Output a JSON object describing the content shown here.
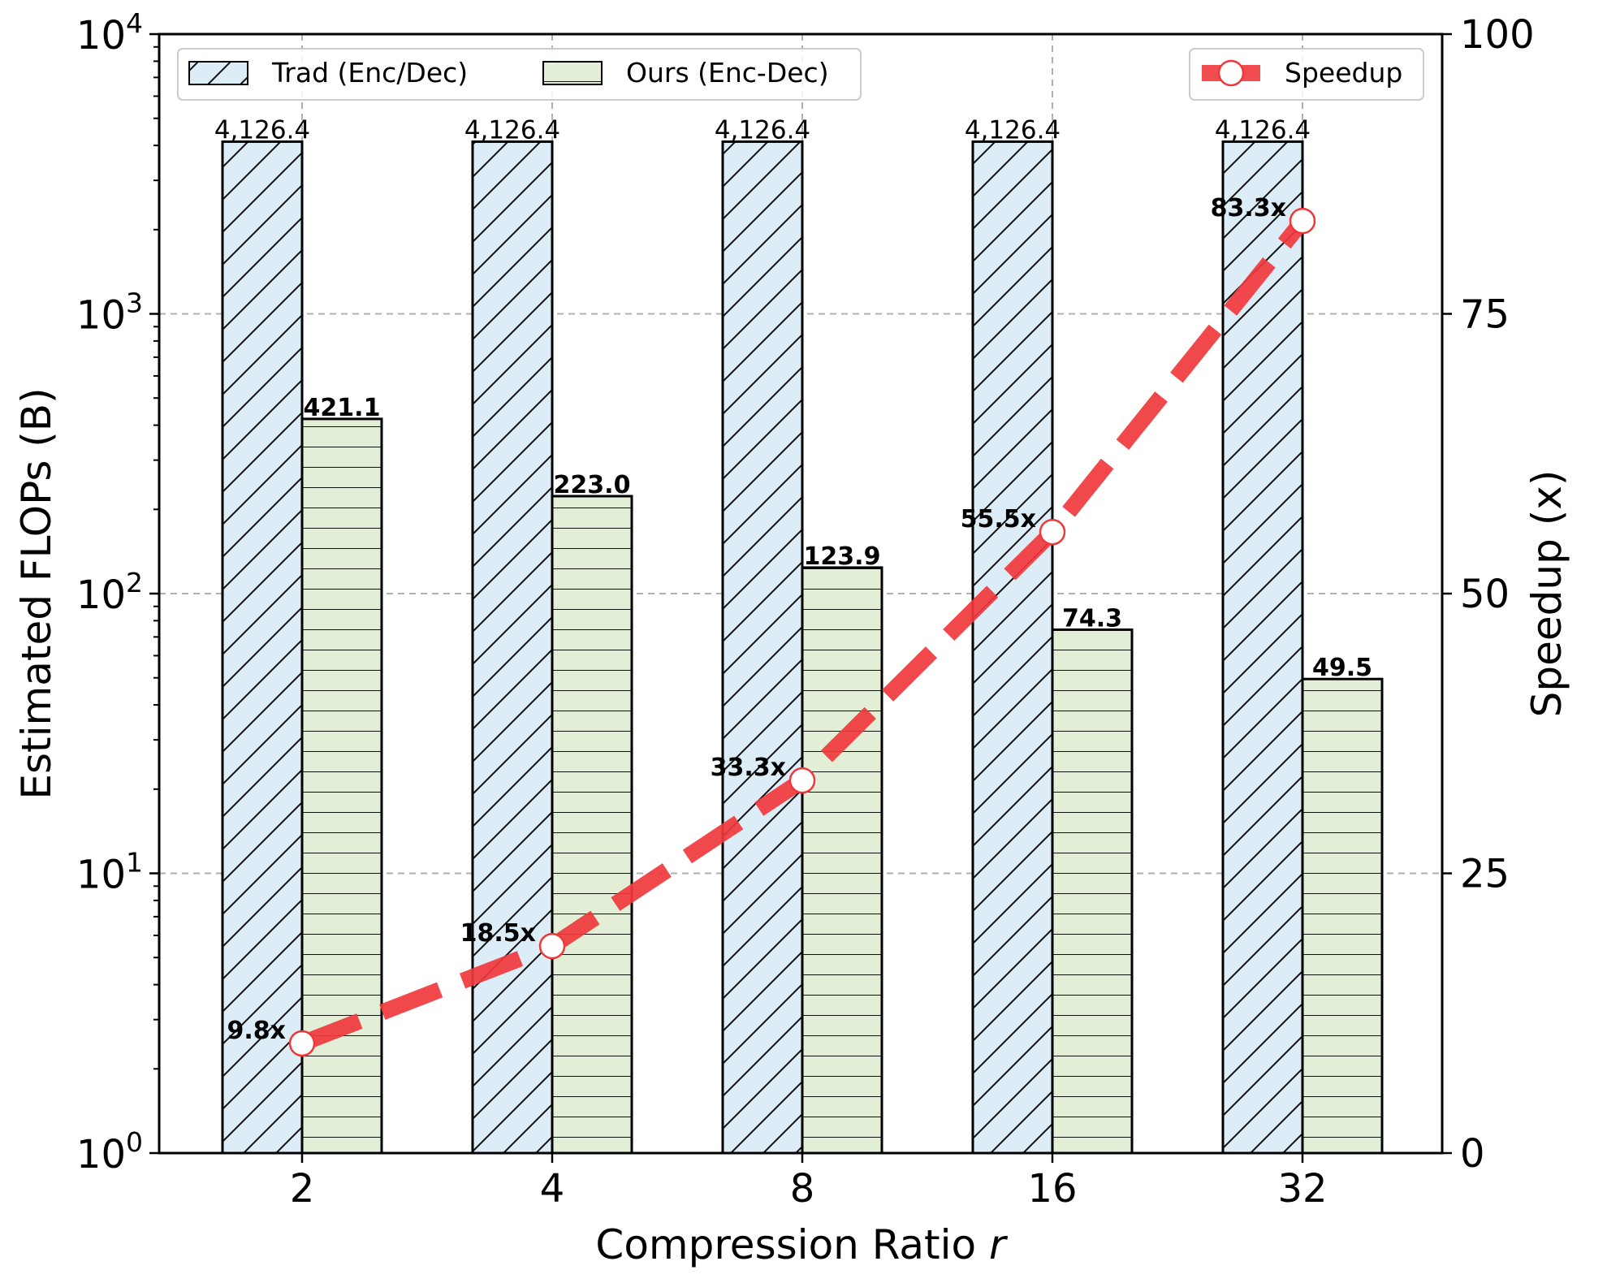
{
  "chart_data": {
    "type": "bar",
    "categories": [
      "2",
      "4",
      "8",
      "16",
      "32"
    ],
    "xlabel": "Compression Ratio",
    "xlabel_symbol": "r",
    "ylabel_left": "Estimated FLOPs (B)",
    "ylabel_right": "Speedup (x)",
    "y_left_scale": "log",
    "y_left_range": [
      1,
      10000
    ],
    "y_left_ticks": [
      {
        "value": 1,
        "base": "10",
        "exp": "0"
      },
      {
        "value": 10,
        "base": "10",
        "exp": "1"
      },
      {
        "value": 100,
        "base": "10",
        "exp": "2"
      },
      {
        "value": 1000,
        "base": "10",
        "exp": "3"
      },
      {
        "value": 10000,
        "base": "10",
        "exp": "4"
      }
    ],
    "y_right_range": [
      0,
      100
    ],
    "y_right_ticks": [
      "0",
      "25",
      "50",
      "75",
      "100"
    ],
    "grid": true,
    "series": [
      {
        "name": "Trad (Enc/Dec)",
        "axis": "left",
        "kind": "bar",
        "values": [
          4126.4,
          4126.4,
          4126.4,
          4126.4,
          4126.4
        ],
        "labels": [
          "4,126.4",
          "4,126.4",
          "4,126.4",
          "4,126.4",
          "4,126.4"
        ],
        "color": "#dcedf7",
        "hatch": "diagonal"
      },
      {
        "name": "Ours (Enc-Dec)",
        "axis": "left",
        "kind": "bar",
        "values": [
          421.1,
          223.0,
          123.9,
          74.3,
          49.5
        ],
        "labels": [
          "421.1",
          "223.0",
          "123.9",
          "74.3",
          "49.5"
        ],
        "color": "#e2eed6",
        "hatch": "horizontal"
      },
      {
        "name": "Speedup",
        "axis": "right",
        "kind": "line",
        "values": [
          9.8,
          18.5,
          33.3,
          55.5,
          83.3
        ],
        "labels": [
          "9.8x",
          "18.5x",
          "33.3x",
          "55.5x",
          "83.3x"
        ],
        "color": "#f0383c",
        "style": "dashed",
        "marker": "circle"
      }
    ],
    "legend_left_placement": "upper-left",
    "legend_right_placement": "upper-right"
  }
}
